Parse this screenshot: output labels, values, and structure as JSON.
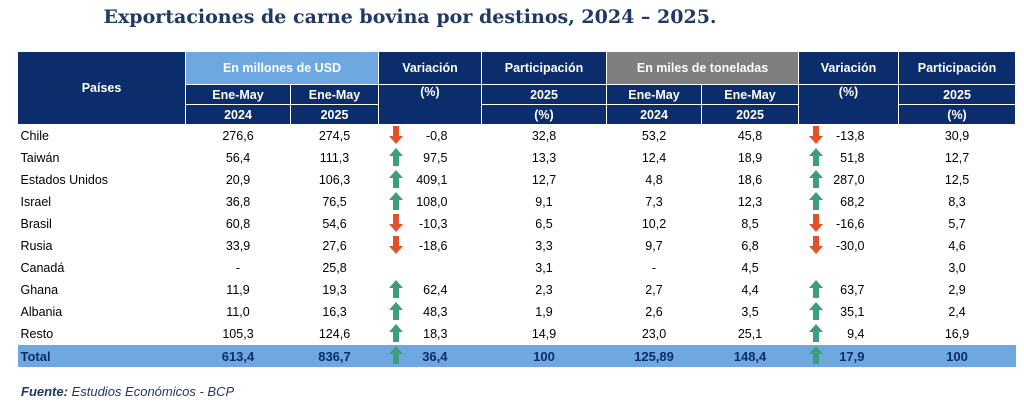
{
  "title": "Exportaciones de carne bovina por destinos, 2024 – 2025.",
  "headers": {
    "paises": "Países",
    "usd_group": "En millones de USD",
    "ton_group": "En miles de toneladas",
    "variacion": "Variación",
    "pct": "(%)",
    "participacion": "Participación",
    "year_2025": "2025",
    "pct_paren": "(%)",
    "ene_may": "Ene-May",
    "y2024": "2024",
    "y2025": "2025"
  },
  "colors": {
    "up": "#3c9d7f",
    "down": "#e0522a",
    "navy": "#0b2d6b",
    "lightblue": "#6fa8e0",
    "grey": "#7f7f7f"
  },
  "rows": [
    {
      "pais": "Chile",
      "usd24": "276,6",
      "usd25": "274,5",
      "vdir": "down",
      "var_usd": "-0,8",
      "part_usd": "32,8",
      "ton24": "53,2",
      "ton25": "45,8",
      "tdir": "down",
      "var_ton": "-13,8",
      "part_ton": "30,9"
    },
    {
      "pais": "Taiwán",
      "usd24": "56,4",
      "usd25": "111,3",
      "vdir": "up",
      "var_usd": "97,5",
      "part_usd": "13,3",
      "ton24": "12,4",
      "ton25": "18,9",
      "tdir": "up",
      "var_ton": "51,8",
      "part_ton": "12,7"
    },
    {
      "pais": "Estados Unidos",
      "usd24": "20,9",
      "usd25": "106,3",
      "vdir": "up",
      "var_usd": "409,1",
      "part_usd": "12,7",
      "ton24": "4,8",
      "ton25": "18,6",
      "tdir": "up",
      "var_ton": "287,0",
      "part_ton": "12,5"
    },
    {
      "pais": "Israel",
      "usd24": "36,8",
      "usd25": "76,5",
      "vdir": "up",
      "var_usd": "108,0",
      "part_usd": "9,1",
      "ton24": "7,3",
      "ton25": "12,3",
      "tdir": "up",
      "var_ton": "68,2",
      "part_ton": "8,3"
    },
    {
      "pais": "Brasil",
      "usd24": "60,8",
      "usd25": "54,6",
      "vdir": "down",
      "var_usd": "-10,3",
      "part_usd": "6,5",
      "ton24": "10,2",
      "ton25": "8,5",
      "tdir": "down",
      "var_ton": "-16,6",
      "part_ton": "5,7"
    },
    {
      "pais": "Rusia",
      "usd24": "33,9",
      "usd25": "27,6",
      "vdir": "down",
      "var_usd": "-18,6",
      "part_usd": "3,3",
      "ton24": "9,7",
      "ton25": "6,8",
      "tdir": "down",
      "var_ton": "-30,0",
      "part_ton": "4,6"
    },
    {
      "pais": "Canadá",
      "usd24": "-",
      "usd25": "25,8",
      "vdir": "",
      "var_usd": "",
      "part_usd": "3,1",
      "ton24": "-",
      "ton25": "4,5",
      "tdir": "",
      "var_ton": "",
      "part_ton": "3,0"
    },
    {
      "pais": "Ghana",
      "usd24": "11,9",
      "usd25": "19,3",
      "vdir": "up",
      "var_usd": "62,4",
      "part_usd": "2,3",
      "ton24": "2,7",
      "ton25": "4,4",
      "tdir": "up",
      "var_ton": "63,7",
      "part_ton": "2,9"
    },
    {
      "pais": "Albania",
      "usd24": "11,0",
      "usd25": "16,3",
      "vdir": "up",
      "var_usd": "48,3",
      "part_usd": "1,9",
      "ton24": "2,6",
      "ton25": "3,5",
      "tdir": "up",
      "var_ton": "35,1",
      "part_ton": "2,4"
    },
    {
      "pais": "Resto",
      "usd24": "105,3",
      "usd25": "124,6",
      "vdir": "up",
      "var_usd": "18,3",
      "part_usd": "14,9",
      "ton24": "23,0",
      "ton25": "25,1",
      "tdir": "up",
      "var_ton": "9,4",
      "part_ton": "16,9"
    }
  ],
  "total": {
    "pais": "Total",
    "usd24": "613,4",
    "usd25": "836,7",
    "vdir": "up",
    "var_usd": "36,4",
    "part_usd": "100",
    "ton24": "125,89",
    "ton25": "148,4",
    "tdir": "up",
    "var_ton": "17,9",
    "part_ton": "100"
  },
  "source": {
    "label": "Fuente:",
    "text": " Estudios Económicos - BCP"
  }
}
